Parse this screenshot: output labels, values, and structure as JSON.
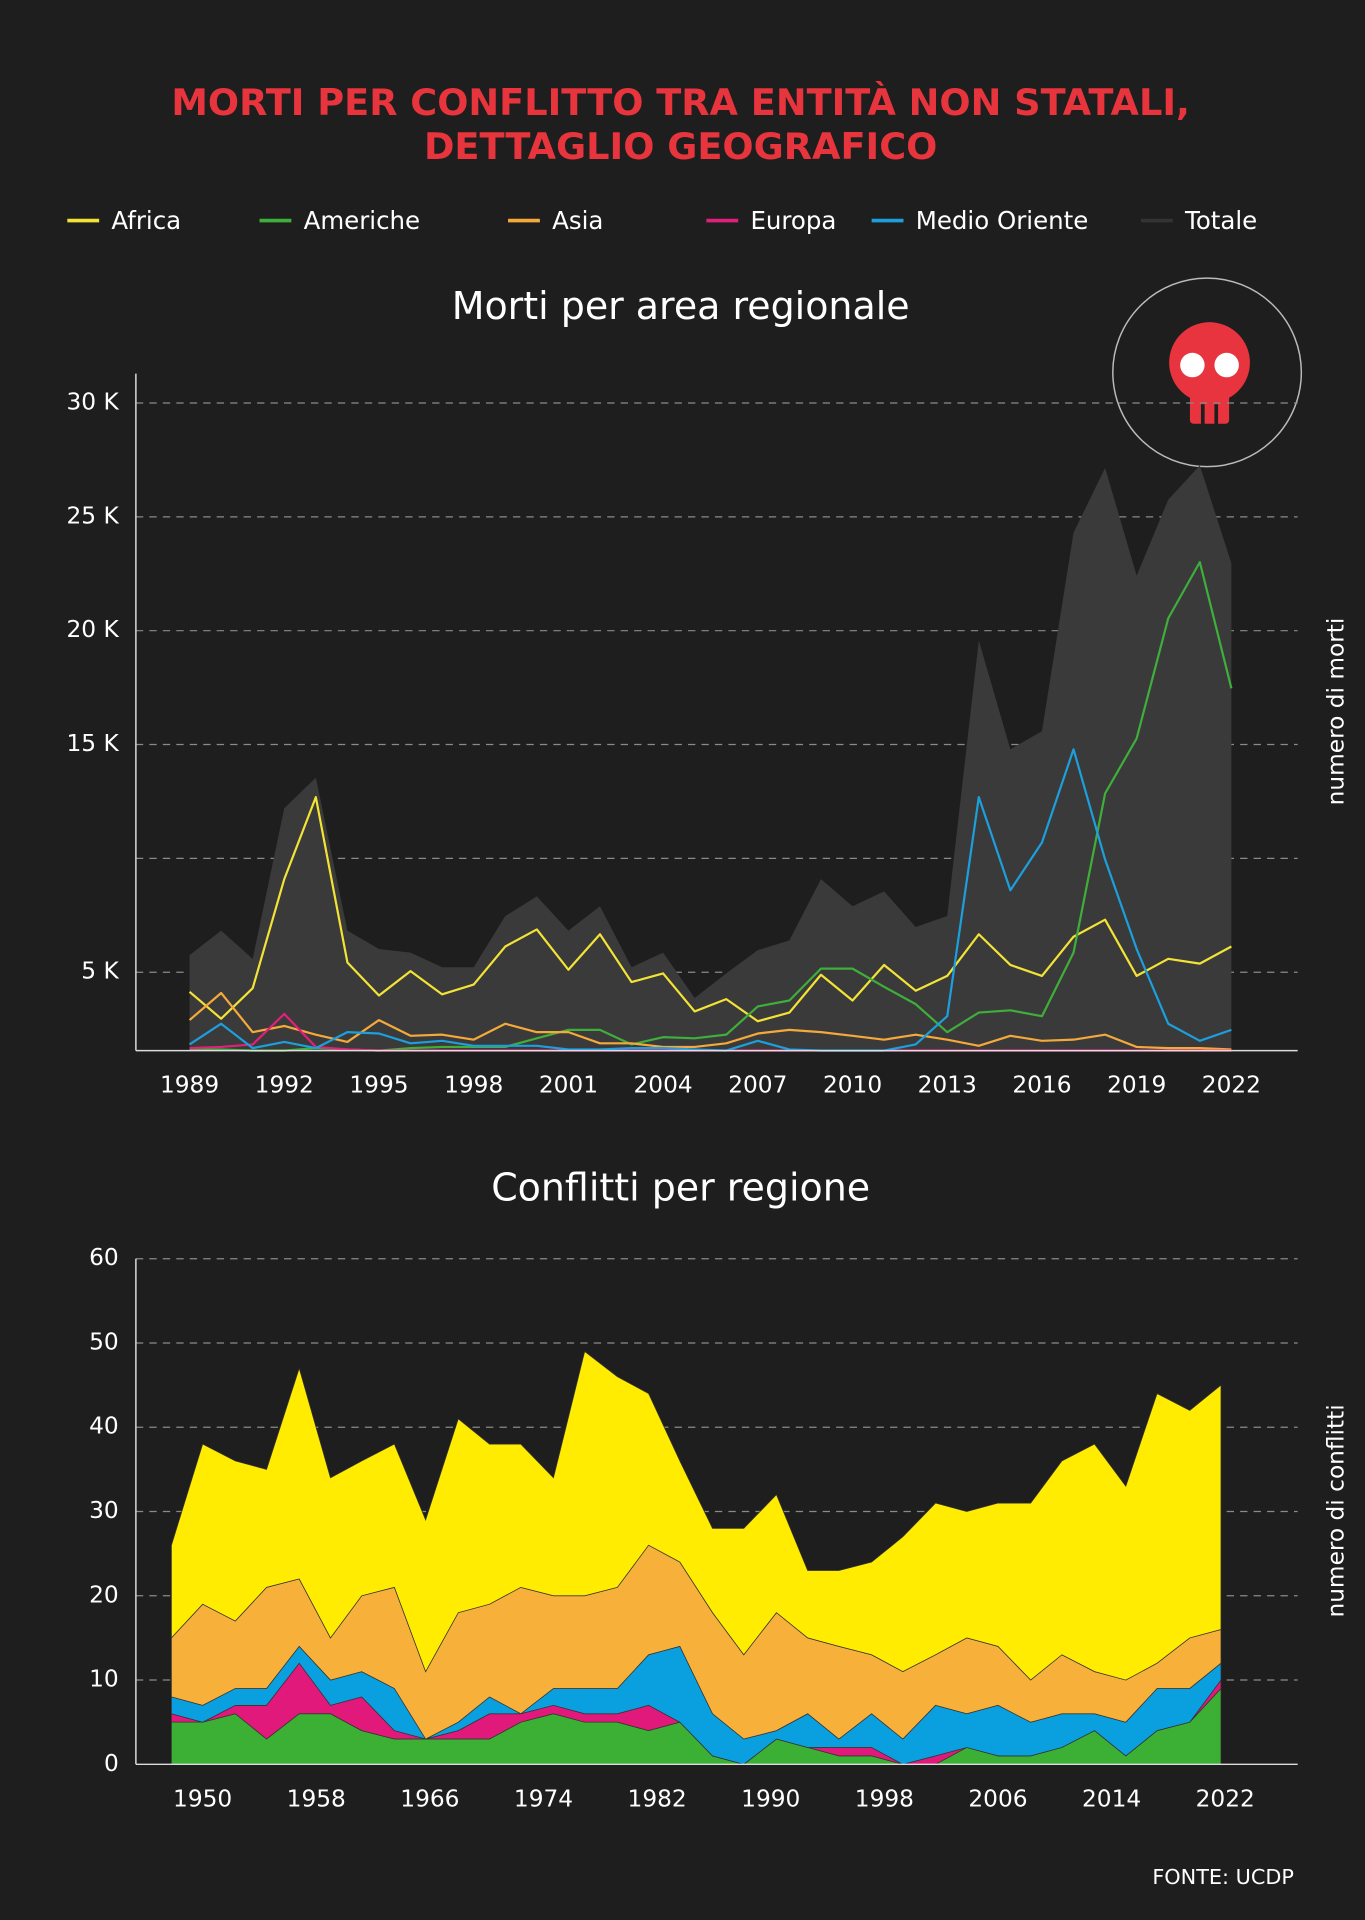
{
  "title_lines": [
    "MORTI PER CONFLITTO TRA ENTITÀ NON STATALI,",
    "DETTAGLIO GEOGRAFICO"
  ],
  "source": "FONTE: UCDP",
  "chart_data": [
    {
      "type": "line",
      "title": "Morti per area regionale",
      "y_label": "numero di morti",
      "x": [
        1989,
        1990,
        1991,
        1992,
        1993,
        1994,
        1995,
        1996,
        1997,
        1998,
        1999,
        2000,
        2001,
        2002,
        2003,
        2004,
        2005,
        2006,
        2007,
        2008,
        2009,
        2010,
        2011,
        2012,
        2013,
        2014,
        2015,
        2016,
        2017,
        2018,
        2019,
        2020,
        2021,
        2022
      ],
      "xlim": [
        1987.3,
        2024.1
      ],
      "xticks": [
        1989,
        1992,
        1995,
        1998,
        2001,
        2004,
        2007,
        2010,
        2013,
        2016,
        2019,
        2022
      ],
      "ylim": [
        1560,
        31290
      ],
      "yticks": [
        {
          "value": 5000,
          "label": "5 K"
        },
        {
          "value": 15000,
          "label": "15 K"
        },
        {
          "value": 20000,
          "label": "20 K"
        },
        {
          "value": 25000,
          "label": "25 K"
        },
        {
          "value": 30000,
          "label": "30 K"
        }
      ],
      "grid_lines": [
        5000,
        10000,
        15000,
        20000,
        25000,
        30000
      ],
      "series": [
        {
          "name": "Africa",
          "color": "#f2e336",
          "values": [
            4140,
            2960,
            4300,
            9090,
            12690,
            5430,
            3980,
            5050,
            4030,
            4460,
            6130,
            6880,
            5110,
            6670,
            4570,
            4950,
            3280,
            3820,
            2850,
            3230,
            4890,
            3760,
            5320,
            4190,
            4840,
            6670,
            5320,
            4840,
            6560,
            7310,
            4840,
            5590,
            5380,
            6130
          ]
        },
        {
          "name": "Americhe",
          "color": "#3fae3a",
          "values": [
            1610,
            1610,
            1560,
            1560,
            1670,
            1610,
            1560,
            1670,
            1720,
            1720,
            1720,
            2100,
            2470,
            2470,
            1830,
            2150,
            2100,
            2260,
            3500,
            3760,
            5160,
            5160,
            4360,
            3600,
            2370,
            3230,
            3330,
            3070,
            5860,
            12850,
            15270,
            20540,
            23010,
            17470
          ]
        },
        {
          "name": "Asia",
          "color": "#f4a93a",
          "values": [
            2900,
            4090,
            2370,
            2640,
            2260,
            1940,
            2900,
            2210,
            2260,
            2040,
            2740,
            2370,
            2370,
            1880,
            1880,
            1720,
            1720,
            1880,
            2310,
            2470,
            2370,
            2210,
            2040,
            2260,
            2040,
            1770,
            2210,
            1990,
            2040,
            2260,
            1720,
            1670,
            1670,
            1610
          ]
        },
        {
          "name": "Europa",
          "color": "#e0207a",
          "values": [
            1670,
            1720,
            1830,
            3170,
            1720,
            1610,
            1560,
            1560,
            1560,
            1560,
            1560,
            1560,
            1560,
            1560,
            1560,
            1560,
            1560,
            1560,
            1560,
            1560,
            1560,
            1560,
            1560,
            1560,
            1560,
            1560,
            1560,
            1560,
            1560,
            1560,
            1560,
            1560,
            1560,
            1560
          ]
        },
        {
          "name": "Medio Oriente",
          "color": "#1c9fdc",
          "values": [
            1830,
            2740,
            1670,
            1940,
            1670,
            2370,
            2310,
            1880,
            1990,
            1770,
            1770,
            1770,
            1610,
            1610,
            1670,
            1670,
            1610,
            1560,
            1990,
            1610,
            1560,
            1560,
            1560,
            1830,
            3070,
            12690,
            8600,
            10700,
            14790,
            9950,
            6020,
            2740,
            1990,
            2470
          ]
        },
        {
          "name": "Totale",
          "color": "#3a3a3a",
          "area": true,
          "values": [
            5750,
            6830,
            5590,
            12200,
            13550,
            6830,
            6020,
            5860,
            5220,
            5220,
            7470,
            8330,
            6830,
            7900,
            5220,
            5860,
            3870,
            4950,
            5970,
            6400,
            9090,
            7900,
            8550,
            6990,
            7470,
            19570,
            14790,
            15590,
            24300,
            27150,
            22420,
            25750,
            27260,
            22960
          ]
        }
      ]
    },
    {
      "type": "stacked_area",
      "title": "Conflitti per regione",
      "y_label": "numero di conflitti",
      "x": [
        1947.8,
        1950.0,
        1952.3,
        1954.5,
        1956.8,
        1959.0,
        1961.2,
        1963.5,
        1965.7,
        1968.0,
        1970.2,
        1972.4,
        1974.7,
        1976.9,
        1979.2,
        1981.4,
        1983.6,
        1985.9,
        1988.1,
        1990.4,
        1992.6,
        1994.8,
        1997.1,
        1999.3,
        2001.6,
        2003.8,
        2006.0,
        2008.3,
        2010.5,
        2012.8,
        2015.0,
        2017.2,
        2019.5,
        2021.7
      ],
      "xlim": [
        1945.3,
        2027.1
      ],
      "xticks": [
        1950,
        1958,
        1966,
        1974,
        1982,
        1990,
        1998,
        2006,
        2014,
        2022
      ],
      "ylim": [
        0,
        60
      ],
      "yticks": [
        0,
        10,
        20,
        30,
        40,
        50,
        60
      ],
      "grid": true,
      "series": [
        {
          "name": "Americhe",
          "color": "#3cb035",
          "values": [
            5,
            5,
            6,
            3,
            6,
            6,
            4,
            3,
            3,
            3,
            3,
            5,
            6,
            5,
            5,
            4,
            5,
            1,
            0,
            3,
            2,
            1,
            1,
            0,
            0,
            2,
            1,
            1,
            2,
            4,
            1,
            4,
            5,
            9
          ]
        },
        {
          "name": "Europa",
          "color": "#e0197a",
          "values": [
            1,
            0,
            1,
            4,
            6,
            1,
            4,
            1,
            0,
            1,
            3,
            1,
            1,
            1,
            1,
            3,
            0,
            0,
            0,
            0,
            0,
            1,
            1,
            0,
            1,
            0,
            0,
            0,
            0,
            0,
            0,
            0,
            0,
            1
          ]
        },
        {
          "name": "Medio Oriente",
          "color": "#0aa0e0",
          "values": [
            2,
            2,
            2,
            2,
            2,
            3,
            3,
            5,
            0,
            1,
            2,
            0,
            2,
            3,
            3,
            6,
            9,
            5,
            3,
            1,
            4,
            1,
            4,
            3,
            6,
            4,
            6,
            4,
            4,
            2,
            4,
            5,
            4,
            2
          ]
        },
        {
          "name": "Asia",
          "color": "#f7b13b",
          "values": [
            7,
            12,
            8,
            12,
            8,
            5,
            9,
            12,
            8,
            13,
            11,
            15,
            11,
            11,
            12,
            13,
            10,
            12,
            10,
            14,
            9,
            11,
            7,
            8,
            6,
            9,
            7,
            5,
            7,
            5,
            5,
            3,
            6,
            4
          ]
        },
        {
          "name": "Africa",
          "color": "#ffec00",
          "values": [
            11,
            19,
            19,
            14,
            25,
            19,
            16,
            17,
            18,
            23,
            19,
            17,
            14,
            29,
            25,
            18,
            12,
            10,
            15,
            14,
            8,
            9,
            11,
            16,
            18,
            15,
            17,
            21,
            23,
            27,
            23,
            32,
            27,
            29
          ]
        }
      ]
    }
  ]
}
